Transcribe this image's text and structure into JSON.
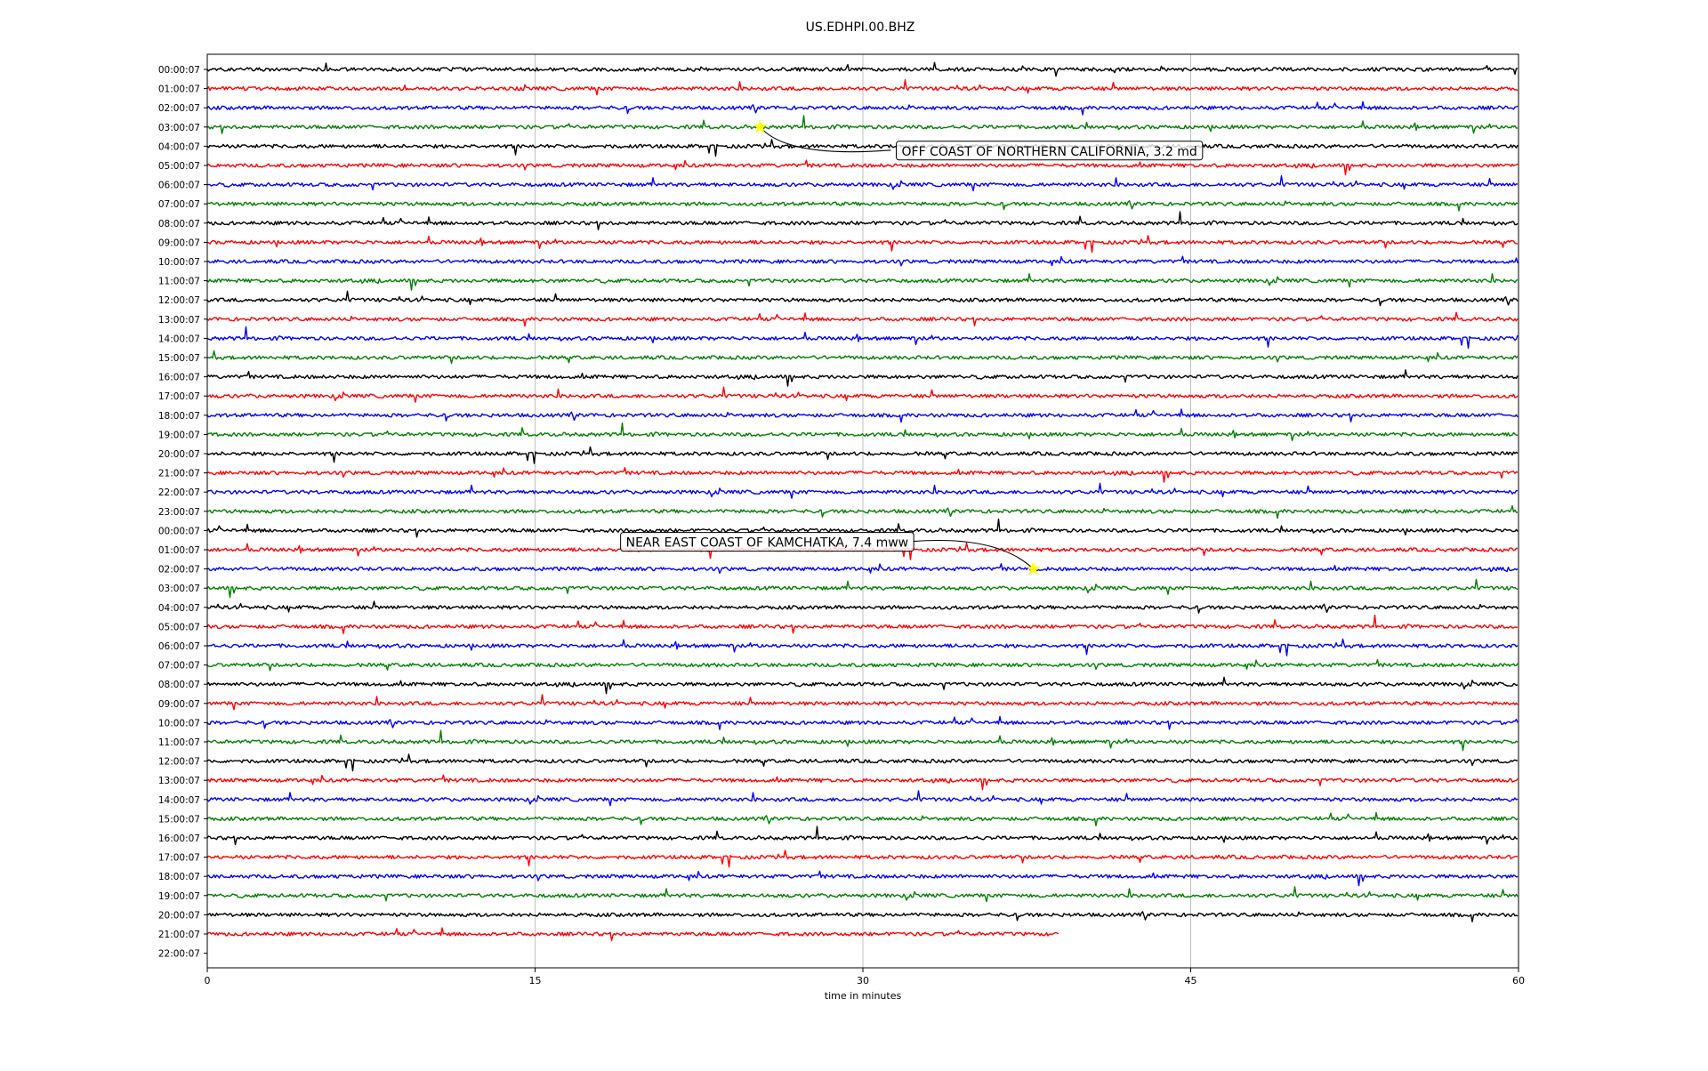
{
  "chart_data": {
    "type": "line",
    "title": "US.EDHPI.00.BHZ",
    "xlabel": "time in minutes",
    "ylabel": "",
    "xlim": [
      0,
      60
    ],
    "x_ticks": [
      "0",
      "15",
      "30",
      "45",
      "60"
    ],
    "grid": "vertical lines at 15, 30, 45",
    "colors": [
      "#000000",
      "#ff0000",
      "#0000ff",
      "#008000"
    ],
    "row_labels": [
      "00:00:07",
      "01:00:07",
      "02:00:07",
      "03:00:07",
      "04:00:07",
      "05:00:07",
      "06:00:07",
      "07:00:07",
      "08:00:07",
      "09:00:07",
      "10:00:07",
      "11:00:07",
      "12:00:07",
      "13:00:07",
      "14:00:07",
      "15:00:07",
      "16:00:07",
      "17:00:07",
      "18:00:07",
      "19:00:07",
      "20:00:07",
      "21:00:07",
      "22:00:07",
      "23:00:07",
      "00:00:07",
      "01:00:07",
      "02:00:07",
      "03:00:07",
      "04:00:07",
      "05:00:07",
      "06:00:07",
      "07:00:07",
      "08:00:07",
      "09:00:07",
      "10:00:07",
      "11:00:07",
      "12:00:07",
      "13:00:07",
      "14:00:07",
      "15:00:07",
      "16:00:07",
      "17:00:07",
      "18:00:07",
      "19:00:07",
      "20:00:07",
      "21:00:07",
      "22:00:07"
    ],
    "traces_end_minute": [
      60,
      60,
      60,
      60,
      60,
      60,
      60,
      60,
      60,
      60,
      60,
      60,
      60,
      60,
      60,
      60,
      60,
      60,
      60,
      60,
      60,
      60,
      60,
      60,
      60,
      60,
      60,
      60,
      60,
      60,
      60,
      60,
      60,
      60,
      60,
      60,
      60,
      60,
      60,
      60,
      60,
      60,
      60,
      60,
      60,
      39,
      0
    ],
    "events": [
      {
        "label": "OFF COAST OF NORTHERN CALIFORNIA, 3.2 md",
        "row": 3,
        "minute": 25.3,
        "marker_color": "#ffff00"
      },
      {
        "label": "NEAR EAST COAST OF KAMCHATKA, 7.4 mww",
        "row": 26,
        "minute": 37.8,
        "marker_color": "#ffff00"
      }
    ]
  }
}
